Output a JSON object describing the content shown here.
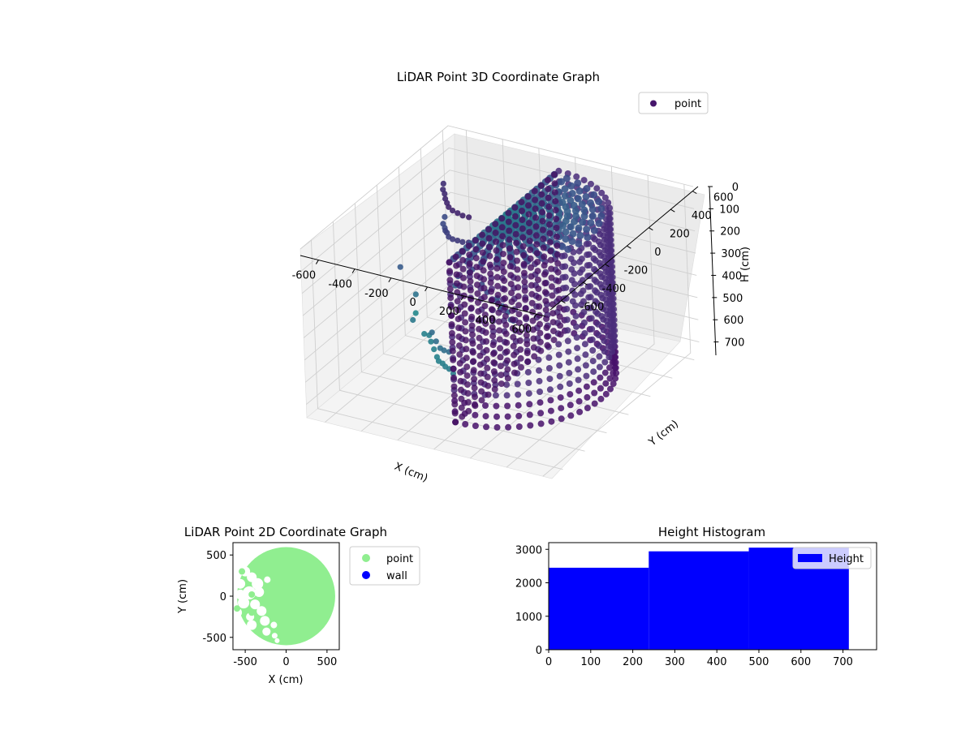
{
  "chart_data": [
    {
      "type": "scatter",
      "title": "LiDAR Point 3D Coordinate Graph",
      "xlabel": "X (cm)",
      "ylabel": "Y (cm)",
      "zlabel": "H (cm)",
      "xlim": [
        -700,
        650
      ],
      "ylim": [
        -700,
        650
      ],
      "zlim": [
        0,
        760
      ],
      "z_inverted": true,
      "xticks": [
        -600,
        -400,
        -200,
        0,
        200,
        400,
        600
      ],
      "yticks": [
        -600,
        -400,
        -200,
        0,
        200,
        400,
        600
      ],
      "zticks": [
        0,
        100,
        200,
        300,
        400,
        500,
        600,
        700
      ],
      "grid": true,
      "legend": {
        "position": "top-right",
        "entries": [
          "point"
        ]
      },
      "colormap": "viridis",
      "series": [
        {
          "name": "point",
          "color": "#46166b",
          "solid_region": {
            "shape": "half-cylinder",
            "radius": 500,
            "h_range": [
              0,
              720
            ],
            "x_range": [
              0,
              500
            ]
          },
          "points": [
            [
              -600,
              430,
              300
            ],
            [
              -560,
              350,
              290
            ],
            [
              -520,
              300,
              280
            ],
            [
              -480,
              240,
              260
            ],
            [
              -440,
              190,
              240
            ],
            [
              -400,
              140,
              230
            ],
            [
              -360,
              110,
              220
            ],
            [
              -320,
              90,
              210
            ],
            [
              -280,
              70,
              200
            ],
            [
              -240,
              60,
              190
            ],
            [
              -600,
              430,
              150
            ],
            [
              -560,
              360,
              140
            ],
            [
              -520,
              310,
              130
            ],
            [
              -480,
              250,
              120
            ],
            [
              -440,
              200,
              110
            ],
            [
              -400,
              150,
              100
            ],
            [
              -360,
              120,
              95
            ],
            [
              -320,
              100,
              90
            ],
            [
              -280,
              80,
              85
            ],
            [
              -240,
              70,
              80
            ],
            [
              -500,
              50,
              650
            ],
            [
              -460,
              30,
              640
            ],
            [
              -420,
              -20,
              640
            ],
            [
              -380,
              -60,
              650
            ],
            [
              -340,
              -100,
              660
            ],
            [
              -300,
              -150,
              650
            ],
            [
              -260,
              -180,
              640
            ],
            [
              -220,
              -220,
              630
            ],
            [
              -180,
              -250,
              620
            ],
            [
              -140,
              -280,
              620
            ],
            [
              -300,
              -200,
              500
            ],
            [
              -260,
              -230,
              520
            ],
            [
              -220,
              -260,
              530
            ],
            [
              -180,
              -290,
              520
            ],
            [
              -140,
              -310,
              510
            ],
            [
              -100,
              -60,
              300
            ],
            [
              -60,
              -80,
              320
            ],
            [
              -20,
              -100,
              340
            ],
            [
              20,
              -120,
              330
            ],
            [
              60,
              -160,
              340
            ],
            [
              -80,
              40,
              400
            ],
            [
              -40,
              20,
              420
            ],
            [
              0,
              0,
              430
            ],
            [
              40,
              -40,
              440
            ],
            [
              80,
              -80,
              420
            ],
            [
              -650,
              100,
              400
            ],
            [
              -620,
              180,
              550
            ],
            [
              -560,
              50,
              600
            ],
            [
              -700,
              300,
              700
            ],
            [
              -420,
              250,
              500
            ],
            [
              -380,
              150,
              450
            ],
            [
              -330,
              200,
              400
            ],
            [
              -300,
              50,
              350
            ],
            [
              -250,
              100,
              330
            ]
          ]
        }
      ]
    },
    {
      "type": "scatter",
      "title": "LiDAR Point 2D Coordinate Graph",
      "xlabel": "X (cm)",
      "ylabel": "Y (cm)",
      "xlim": [
        -650,
        650
      ],
      "ylim": [
        -650,
        650
      ],
      "xticks": [
        -500,
        0,
        500
      ],
      "yticks": [
        -500,
        0,
        500
      ],
      "legend": {
        "position": "right-outside",
        "entries": [
          "point",
          "wall"
        ]
      },
      "series": [
        {
          "name": "point",
          "color": "#90ee90",
          "disc": {
            "center": [
              0,
              0
            ],
            "radius": 600
          },
          "holes": [
            [
              -560,
              400,
              70
            ],
            [
              -500,
              300,
              60
            ],
            [
              -420,
              230,
              60
            ],
            [
              -350,
              150,
              70
            ],
            [
              -330,
              50,
              60
            ],
            [
              -450,
              40,
              80
            ],
            [
              -520,
              -80,
              70
            ],
            [
              -560,
              20,
              60
            ],
            [
              -600,
              -200,
              60
            ],
            [
              -380,
              -100,
              60
            ],
            [
              -300,
              -180,
              60
            ],
            [
              -260,
              -300,
              60
            ],
            [
              -240,
              -430,
              50
            ],
            [
              -440,
              -250,
              50
            ],
            [
              -150,
              -350,
              40
            ],
            [
              -560,
              150,
              60
            ],
            [
              -230,
              200,
              40
            ],
            [
              -420,
              -350,
              60
            ],
            [
              -600,
              550,
              60
            ],
            [
              -500,
              560,
              50
            ],
            [
              -140,
              -480,
              35
            ],
            [
              -110,
              -540,
              30
            ]
          ]
        },
        {
          "name": "wall",
          "color": "#0000ff",
          "points": []
        }
      ]
    },
    {
      "type": "bar",
      "title": "Height Histogram",
      "xlabel": "",
      "ylabel": "",
      "xlim": [
        0,
        780
      ],
      "ylim": [
        0,
        3200
      ],
      "xticks": [
        0,
        100,
        200,
        300,
        400,
        500,
        600,
        700
      ],
      "yticks": [
        0,
        1000,
        2000,
        3000
      ],
      "legend": {
        "position": "top-right",
        "entries": [
          "Height"
        ]
      },
      "series": [
        {
          "name": "Height",
          "color": "#0000ff",
          "bins": [
            {
              "from": 0,
              "to": 238,
              "count": 2450
            },
            {
              "from": 238,
              "to": 476,
              "count": 2940
            },
            {
              "from": 476,
              "to": 714,
              "count": 3050
            }
          ]
        }
      ]
    }
  ]
}
